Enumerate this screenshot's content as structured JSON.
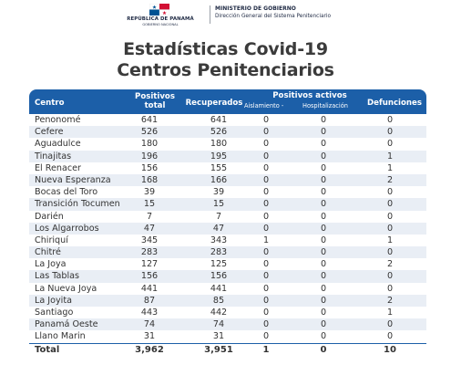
{
  "header": {
    "logo_line1": "REPÚBLICA DE PANAMÁ",
    "logo_line2": "GOBIERNO NACIONAL",
    "ministry_line1": "MINISTERIO DE GOBIERNO",
    "ministry_line2": "Dirección General del Sistema Penitenciario"
  },
  "title": {
    "line1": "Estadísticas Covid-19",
    "line2": "Centros Penitenciarios"
  },
  "table": {
    "headers": {
      "centro": "Centro",
      "positivos_total_1": "Positivos",
      "positivos_total_2": "total",
      "recuperados": "Recuperados",
      "positivos_activos": "Positivos activos",
      "aislamiento": "Aislamiento -",
      "hospitalizacion": "Hospitalización",
      "defunciones": "Defunciones"
    },
    "rows": [
      {
        "centro": "Penonomé",
        "positivos": "641",
        "recuperados": "641",
        "aislamiento": "0",
        "hospitalizacion": "0",
        "defunciones": "0"
      },
      {
        "centro": "Cefere",
        "positivos": "526",
        "recuperados": "526",
        "aislamiento": "0",
        "hospitalizacion": "0",
        "defunciones": "0"
      },
      {
        "centro": "Aguadulce",
        "positivos": "180",
        "recuperados": "180",
        "aislamiento": "0",
        "hospitalizacion": "0",
        "defunciones": "0"
      },
      {
        "centro": "Tinajitas",
        "positivos": "196",
        "recuperados": "195",
        "aislamiento": "0",
        "hospitalizacion": "0",
        "defunciones": "1"
      },
      {
        "centro": "El Renacer",
        "positivos": "156",
        "recuperados": "155",
        "aislamiento": "0",
        "hospitalizacion": "0",
        "defunciones": "1"
      },
      {
        "centro": "Nueva Esperanza",
        "positivos": "168",
        "recuperados": "166",
        "aislamiento": "0",
        "hospitalizacion": "0",
        "defunciones": "2"
      },
      {
        "centro": "Bocas del Toro",
        "positivos": "39",
        "recuperados": "39",
        "aislamiento": "0",
        "hospitalizacion": "0",
        "defunciones": "0"
      },
      {
        "centro": "Transición Tocumen",
        "positivos": "15",
        "recuperados": "15",
        "aislamiento": "0",
        "hospitalizacion": "0",
        "defunciones": "0"
      },
      {
        "centro": "Darién",
        "positivos": "7",
        "recuperados": "7",
        "aislamiento": "0",
        "hospitalizacion": "0",
        "defunciones": "0"
      },
      {
        "centro": "Los Algarrobos",
        "positivos": "47",
        "recuperados": "47",
        "aislamiento": "0",
        "hospitalizacion": "0",
        "defunciones": "0"
      },
      {
        "centro": "Chiriquí",
        "positivos": "345",
        "recuperados": "343",
        "aislamiento": "1",
        "hospitalizacion": "0",
        "defunciones": "1"
      },
      {
        "centro": "Chitré",
        "positivos": "283",
        "recuperados": "283",
        "aislamiento": "0",
        "hospitalizacion": "0",
        "defunciones": "0"
      },
      {
        "centro": "La Joya",
        "positivos": "127",
        "recuperados": "125",
        "aislamiento": "0",
        "hospitalizacion": "0",
        "defunciones": "2"
      },
      {
        "centro": "Las Tablas",
        "positivos": "156",
        "recuperados": "156",
        "aislamiento": "0",
        "hospitalizacion": "0",
        "defunciones": "0"
      },
      {
        "centro": "La Nueva Joya",
        "positivos": "441",
        "recuperados": "441",
        "aislamiento": "0",
        "hospitalizacion": "0",
        "defunciones": "0"
      },
      {
        "centro": "La Joyita",
        "positivos": "87",
        "recuperados": "85",
        "aislamiento": "0",
        "hospitalizacion": "0",
        "defunciones": "2"
      },
      {
        "centro": "Santiago",
        "positivos": "443",
        "recuperados": "442",
        "aislamiento": "0",
        "hospitalizacion": "0",
        "defunciones": "1"
      },
      {
        "centro": "Panamá Oeste",
        "positivos": "74",
        "recuperados": "74",
        "aislamiento": "0",
        "hospitalizacion": "0",
        "defunciones": "0"
      },
      {
        "centro": "Llano Marin",
        "positivos": "31",
        "recuperados": "31",
        "aislamiento": "0",
        "hospitalizacion": "0",
        "defunciones": "0"
      }
    ],
    "total": {
      "centro": "Total",
      "positivos": "3,962",
      "recuperados": "3,951",
      "aislamiento": "1",
      "hospitalizacion": "0",
      "defunciones": "10"
    }
  },
  "colors": {
    "header_blue": "#1c5fa8",
    "row_stripe": "#e9eef5"
  }
}
